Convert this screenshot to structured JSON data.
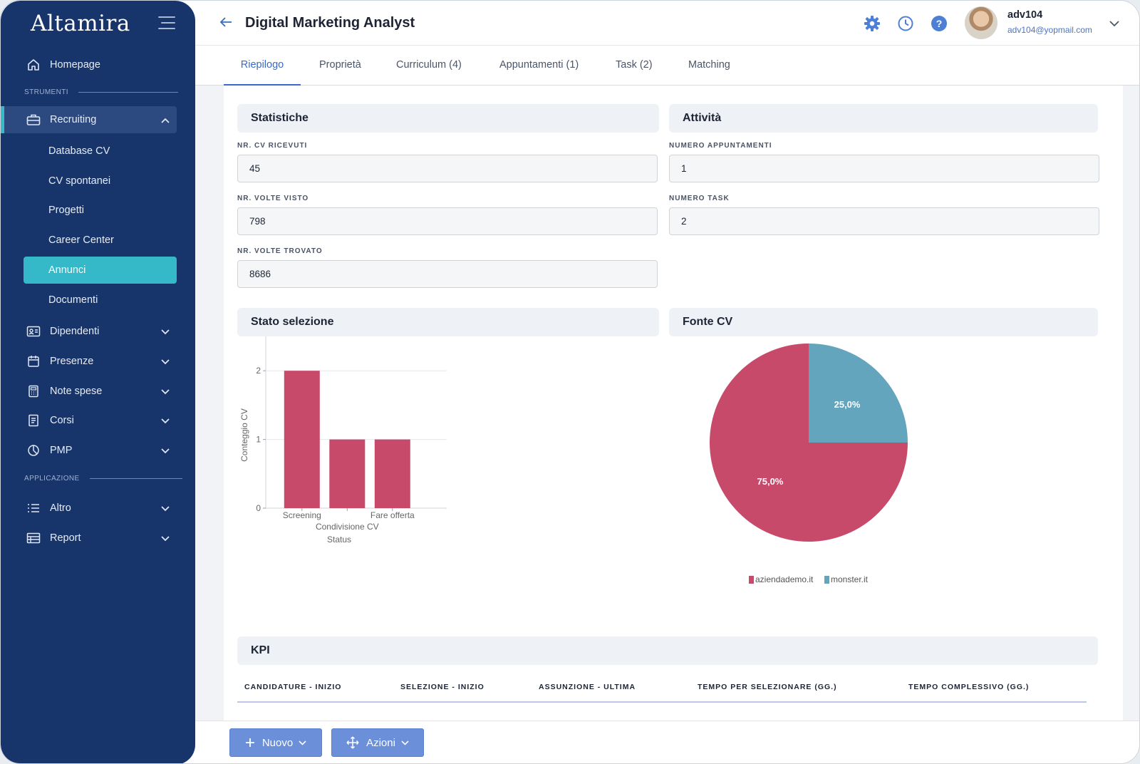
{
  "app": {
    "logo": "Altamira"
  },
  "sidebar": {
    "home": "Homepage",
    "section_tools": "STRUMENTI",
    "recruiting": "Recruiting",
    "recruiting_items": [
      "Database CV",
      "CV spontanei",
      "Progetti",
      "Career Center",
      "Annunci",
      "Documenti"
    ],
    "groups": [
      "Dipendenti",
      "Presenze",
      "Note spese",
      "Corsi",
      "PMP"
    ],
    "section_app": "APPLICAZIONE",
    "app_groups": [
      "Altro",
      "Report"
    ]
  },
  "header": {
    "title": "Digital Marketing Analyst"
  },
  "user": {
    "name": "adv104",
    "email": "adv104@yopmail.com"
  },
  "tabs": [
    "Riepilogo",
    "Proprietà",
    "Curriculum (4)",
    "Appuntamenti (1)",
    "Task (2)",
    "Matching"
  ],
  "statistiche": {
    "title": "Statistiche",
    "fields": [
      {
        "label": "NR. CV RICEVUTI",
        "value": "45"
      },
      {
        "label": "NR. VOLTE VISTO",
        "value": "798"
      },
      {
        "label": "NR. VOLTE TROVATO",
        "value": "8686"
      }
    ]
  },
  "attivita": {
    "title": "Attività",
    "fields": [
      {
        "label": "NUMERO APPUNTAMENTI",
        "value": "1"
      },
      {
        "label": "NUMERO TASK",
        "value": "2"
      }
    ]
  },
  "stato_selezione": {
    "title": "Stato selezione"
  },
  "fonte_cv": {
    "title": "Fonte CV"
  },
  "chart_data": [
    {
      "type": "bar",
      "categories": [
        "Screening",
        "Condivisione CV",
        "Fare offerta"
      ],
      "values": [
        2,
        1,
        1
      ],
      "xlabel": "Status",
      "ylabel": "Conteggio CV",
      "ylim": [
        0,
        2.5
      ],
      "yticks": [
        "0",
        "1",
        "2"
      ],
      "color": "#c84a6b",
      "grid": true
    },
    {
      "type": "pie",
      "labels": [
        "aziendademo.it",
        "monster.it"
      ],
      "values": [
        75.0,
        25.0
      ],
      "data_labels": [
        "75,0%",
        "25,0%"
      ],
      "colors": [
        "#c84a6b",
        "#63a5bd"
      ],
      "legend": "bottom"
    }
  ],
  "kpi": {
    "title": "KPI",
    "columns": [
      "CANDIDATURE - INIZIO",
      "SELEZIONE - INIZIO",
      "ASSUNZIONE - ULTIMA",
      "TEMPO PER SELEZIONARE (GG.)",
      "TEMPO COMPLESSIVO (GG.)"
    ]
  },
  "actions": {
    "new": "Nuovo",
    "actions": "Azioni"
  },
  "colors": {
    "sidebar": "#17356b",
    "accent": "#35b8c8",
    "primary": "#3a6bc4",
    "button": "#6b8fd8"
  }
}
